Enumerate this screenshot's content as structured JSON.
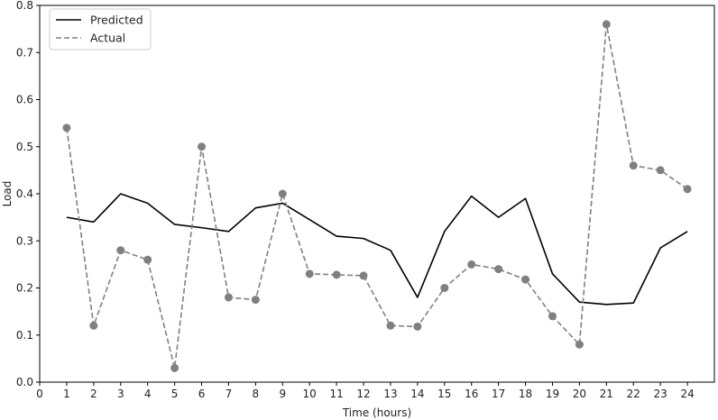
{
  "chart_data": {
    "type": "line",
    "title": "",
    "xlabel": "Time (hours)",
    "ylabel": "Load",
    "xlim": [
      0,
      25
    ],
    "ylim": [
      0,
      0.8
    ],
    "x_ticks": [
      0,
      1,
      2,
      3,
      4,
      5,
      6,
      7,
      8,
      9,
      10,
      11,
      12,
      13,
      14,
      15,
      16,
      17,
      18,
      19,
      20,
      21,
      22,
      23,
      24
    ],
    "y_ticks": [
      0.0,
      0.1,
      0.2,
      0.3,
      0.4,
      0.5,
      0.6,
      0.7,
      0.8
    ],
    "y_tick_labels": [
      "0.0",
      "0.1",
      "0.2",
      "0.3",
      "0.4",
      "0.5",
      "0.6",
      "0.7",
      "0.8"
    ],
    "grid": false,
    "legend_position": "top-left",
    "x": [
      1,
      2,
      3,
      4,
      5,
      6,
      7,
      8,
      9,
      10,
      11,
      12,
      13,
      14,
      15,
      16,
      17,
      18,
      19,
      20,
      21,
      22,
      23,
      24
    ],
    "series": [
      {
        "name": "Predicted",
        "style": "solid",
        "markers": false,
        "color": "#000000",
        "values": [
          0.35,
          0.34,
          0.4,
          0.38,
          0.335,
          0.328,
          0.32,
          0.37,
          0.38,
          0.345,
          0.31,
          0.305,
          0.28,
          0.18,
          0.32,
          0.395,
          0.35,
          0.39,
          0.23,
          0.17,
          0.165,
          0.168,
          0.285,
          0.32
        ]
      },
      {
        "name": "Actual",
        "style": "dashed",
        "markers": true,
        "color": "#808080",
        "values": [
          0.54,
          0.12,
          0.28,
          0.26,
          0.03,
          0.5,
          0.18,
          0.175,
          0.4,
          0.23,
          0.228,
          0.226,
          0.12,
          0.118,
          0.2,
          0.25,
          0.24,
          0.218,
          0.14,
          0.08,
          0.76,
          0.46,
          0.45,
          0.41
        ]
      }
    ]
  }
}
